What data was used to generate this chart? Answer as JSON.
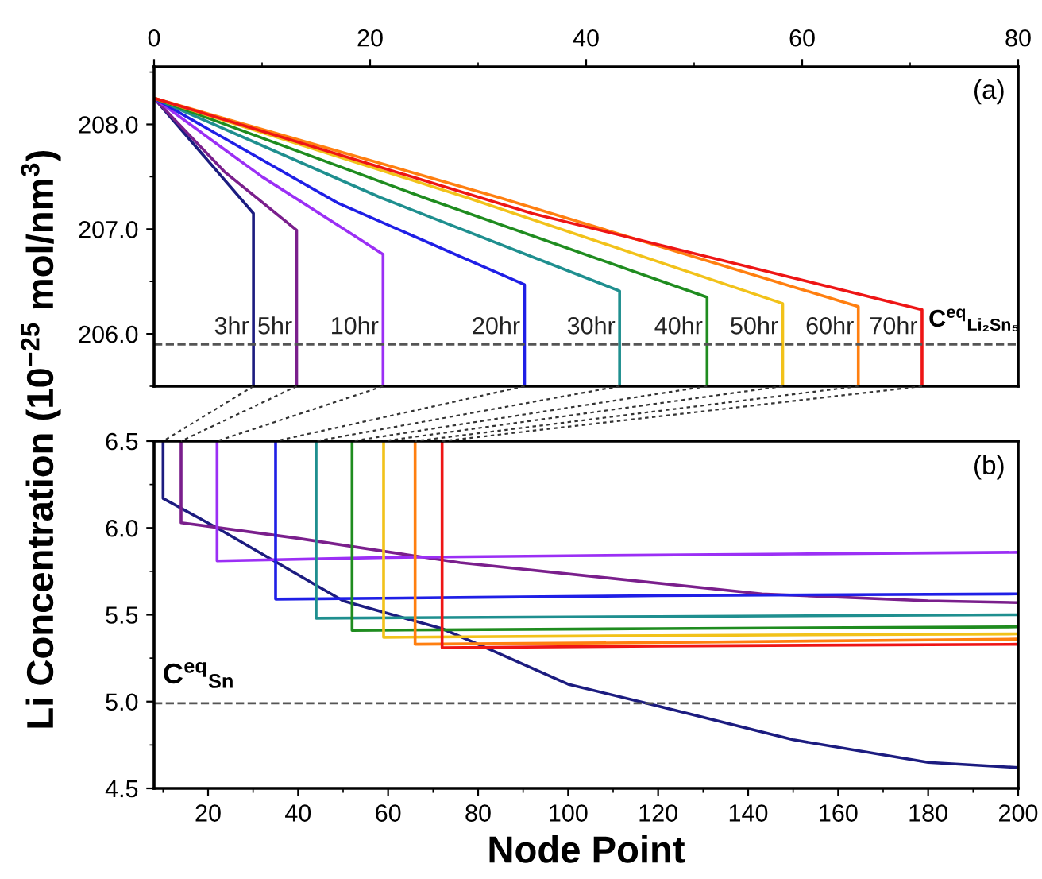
{
  "chart_data": [
    {
      "type": "line",
      "ylabel": "Li Concentration (10$^{−25}$ mol/nm$^{3}$)",
      "xlim": [
        0,
        80
      ],
      "xticks": [
        0,
        20,
        40,
        60,
        80
      ],
      "ylim": [
        205.5,
        208.55
      ],
      "yticks": [
        {
          "value": 206,
          "label": "206.0"
        },
        {
          "value": 207,
          "label": "207.0"
        },
        {
          "value": 208,
          "label": "208.0"
        }
      ],
      "grid": false,
      "legend": false,
      "marker": "none",
      "line_style": "solid",
      "series": [
        {
          "name": "3hr",
          "color": "#1c1c80",
          "x": [
            0,
            9.2,
            9.2
          ],
          "values": [
            208.25,
            207.15,
            205.5
          ]
        },
        {
          "name": "5hr",
          "color": "#7a1f8c",
          "x": [
            0,
            6.5,
            13.2,
            13.2
          ],
          "values": [
            208.25,
            207.55,
            206.99,
            205.5
          ]
        },
        {
          "name": "10hr",
          "color": "#9b2ff5",
          "x": [
            0,
            10,
            18.5,
            21.2,
            21.2
          ],
          "values": [
            208.25,
            207.5,
            206.94,
            206.76,
            205.5
          ]
        },
        {
          "name": "20hr",
          "color": "#1f1fe6",
          "x": [
            0,
            17,
            34.3,
            34.3
          ],
          "values": [
            208.25,
            207.25,
            206.47,
            205.5
          ]
        },
        {
          "name": "30hr",
          "color": "#1f8f8f",
          "x": [
            0,
            21,
            43.1,
            43.1
          ],
          "values": [
            208.25,
            207.3,
            206.41,
            205.5
          ]
        },
        {
          "name": "40hr",
          "color": "#1f8c1f",
          "x": [
            0,
            25,
            51.2,
            51.2
          ],
          "values": [
            208.25,
            207.3,
            206.35,
            205.5
          ]
        },
        {
          "name": "50hr",
          "color": "#f2c21a",
          "x": [
            0,
            29,
            58.2,
            58.2
          ],
          "values": [
            208.25,
            207.3,
            206.29,
            205.5
          ]
        },
        {
          "name": "60hr",
          "color": "#ff7f10",
          "x": [
            0,
            32,
            65.2,
            65.2
          ],
          "values": [
            208.25,
            207.3,
            206.26,
            205.5
          ]
        },
        {
          "name": "70hr",
          "color": "#ee1515",
          "x": [
            0,
            35,
            71.1,
            71.1
          ],
          "values": [
            208.25,
            207.15,
            206.23,
            205.5
          ]
        }
      ],
      "ref_lines": [
        {
          "axis": "y",
          "value": 205.9,
          "label": "C$^{eq}$$_{Li₂Sn₅}$",
          "color": "#555555",
          "line_style": "dashed"
        }
      ],
      "annotations": [
        "(a)"
      ]
    },
    {
      "type": "line",
      "xlabel": "Node Point",
      "xlim": [
        8,
        200
      ],
      "xticks": [
        20,
        40,
        60,
        80,
        100,
        120,
        140,
        160,
        180,
        200
      ],
      "ylim": [
        4.5,
        6.5
      ],
      "yticks": [
        4.5,
        {
          "value": 5,
          "label": "5.0"
        },
        5.5,
        {
          "value": 6,
          "label": "6.0"
        },
        6.5
      ],
      "grid": false,
      "legend": false,
      "marker": "none",
      "line_style": "solid",
      "series": [
        {
          "color": "#1c1c80",
          "x": [
            10,
            10,
            22,
            50,
            72,
            80,
            100,
            119,
            150,
            180,
            200
          ],
          "values": [
            6.5,
            6.17,
            6.0,
            5.58,
            5.42,
            5.33,
            5.1,
            4.98,
            4.78,
            4.65,
            4.62
          ]
        },
        {
          "color": "#7a1f8c",
          "x": [
            14,
            14,
            40,
            76,
            143,
            180,
            200
          ],
          "values": [
            6.5,
            6.03,
            5.94,
            5.8,
            5.62,
            5.58,
            5.57
          ]
        },
        {
          "color": "#9b2ff5",
          "x": [
            22,
            22,
            60,
            100,
            150,
            200
          ],
          "values": [
            6.5,
            5.81,
            5.83,
            5.84,
            5.85,
            5.86
          ]
        },
        {
          "color": "#1f1fe6",
          "x": [
            35,
            35,
            80,
            120,
            200
          ],
          "values": [
            6.5,
            5.59,
            5.6,
            5.61,
            5.62
          ]
        },
        {
          "color": "#1f8f8f",
          "x": [
            44,
            44,
            120,
            200
          ],
          "values": [
            6.5,
            5.48,
            5.49,
            5.5
          ]
        },
        {
          "color": "#1f8c1f",
          "x": [
            52,
            52,
            120,
            200
          ],
          "values": [
            6.5,
            5.41,
            5.42,
            5.43
          ]
        },
        {
          "color": "#f2c21a",
          "x": [
            59,
            59,
            120,
            200
          ],
          "values": [
            6.5,
            5.37,
            5.38,
            5.39
          ]
        },
        {
          "color": "#ff7f10",
          "x": [
            66,
            66,
            120,
            200
          ],
          "values": [
            6.5,
            5.33,
            5.34,
            5.36
          ]
        },
        {
          "color": "#ee1515",
          "x": [
            72,
            72,
            120,
            200
          ],
          "values": [
            6.5,
            5.31,
            5.32,
            5.33
          ]
        }
      ],
      "ref_lines": [
        {
          "axis": "y",
          "value": 4.99,
          "label": "C$^{eq}$$_{Sn}$",
          "color": "#555555",
          "line_style": "dashed"
        }
      ],
      "annotations": [
        "(b)"
      ]
    }
  ]
}
